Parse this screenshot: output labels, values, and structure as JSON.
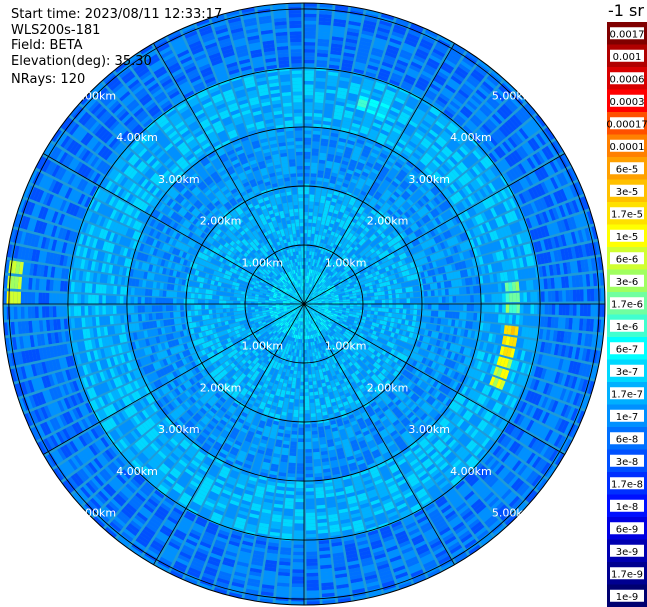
{
  "header": {
    "start_time": "Start time: 2023/08/11 12:33:17",
    "instrument": "WLS200s-181",
    "field": "Field: BETA",
    "elevation": "Elevation(deg): 35.30",
    "nrays": "NRays: 120"
  },
  "colorbar": {
    "unit_title": "-1 sr",
    "labels": [
      "0.0017",
      "0.001",
      "0.0006",
      "0.0003",
      "0.00017",
      "0.0001",
      "6e-5",
      "3e-5",
      "1.7e-5",
      "1e-5",
      "6e-6",
      "3e-6",
      "1.7e-6",
      "1e-6",
      "6e-7",
      "3e-7",
      "1.7e-7",
      "1e-7",
      "6e-8",
      "3e-8",
      "1.7e-8",
      "1e-8",
      "6e-9",
      "3e-9",
      "1.7e-9",
      "1e-9"
    ],
    "colors": [
      "#800000",
      "#b00000",
      "#d80000",
      "#ff0000",
      "#ff5000",
      "#ff8000",
      "#ffa000",
      "#ffc000",
      "#ffe000",
      "#ffff00",
      "#d0ff30",
      "#a0ff60",
      "#70ffa0",
      "#40ffd0",
      "#00ffff",
      "#00d8ff",
      "#00b0ff",
      "#0090ff",
      "#0070ff",
      "#0050ff",
      "#0030ff",
      "#0010ff",
      "#0000e0",
      "#0000b0",
      "#000090",
      "#000070"
    ]
  },
  "chart_data": {
    "type": "heatmap",
    "subtype": "polar-ppi",
    "nrays": 120,
    "range_labels_km": [
      "1.00km",
      "2.00km",
      "3.00km",
      "4.00km",
      "5.00km"
    ],
    "range_rings_km": [
      1,
      2,
      3,
      4,
      5
    ],
    "max_range_km": 5.1,
    "spokes_deg": [
      0,
      30,
      60,
      90,
      120,
      150,
      180,
      210,
      240,
      270,
      300,
      330
    ],
    "value_bands": [
      {
        "from_km": 0.0,
        "to_km": 0.6,
        "level": "3e-7"
      },
      {
        "from_km": 0.6,
        "to_km": 2.0,
        "level": "1.7e-7"
      },
      {
        "from_km": 2.0,
        "to_km": 3.0,
        "level": "1e-7"
      },
      {
        "from_km": 3.0,
        "to_km": 4.0,
        "level": "1.7e-7"
      },
      {
        "from_km": 4.0,
        "to_km": 5.1,
        "level": "6e-8"
      }
    ],
    "hotspots": [
      {
        "azimuth_deg": 88,
        "range_km": 3.5,
        "level": "3e-6"
      },
      {
        "azimuth_deg": 100,
        "range_km": 3.5,
        "level": "3e-5"
      },
      {
        "azimuth_deg": 108,
        "range_km": 3.5,
        "level": "1e-5"
      },
      {
        "azimuth_deg": 272,
        "range_km": 4.9,
        "level": "1e-5"
      },
      {
        "azimuth_deg": 18,
        "range_km": 3.5,
        "level": "1e-6"
      }
    ],
    "grid": true,
    "legend": "right"
  }
}
